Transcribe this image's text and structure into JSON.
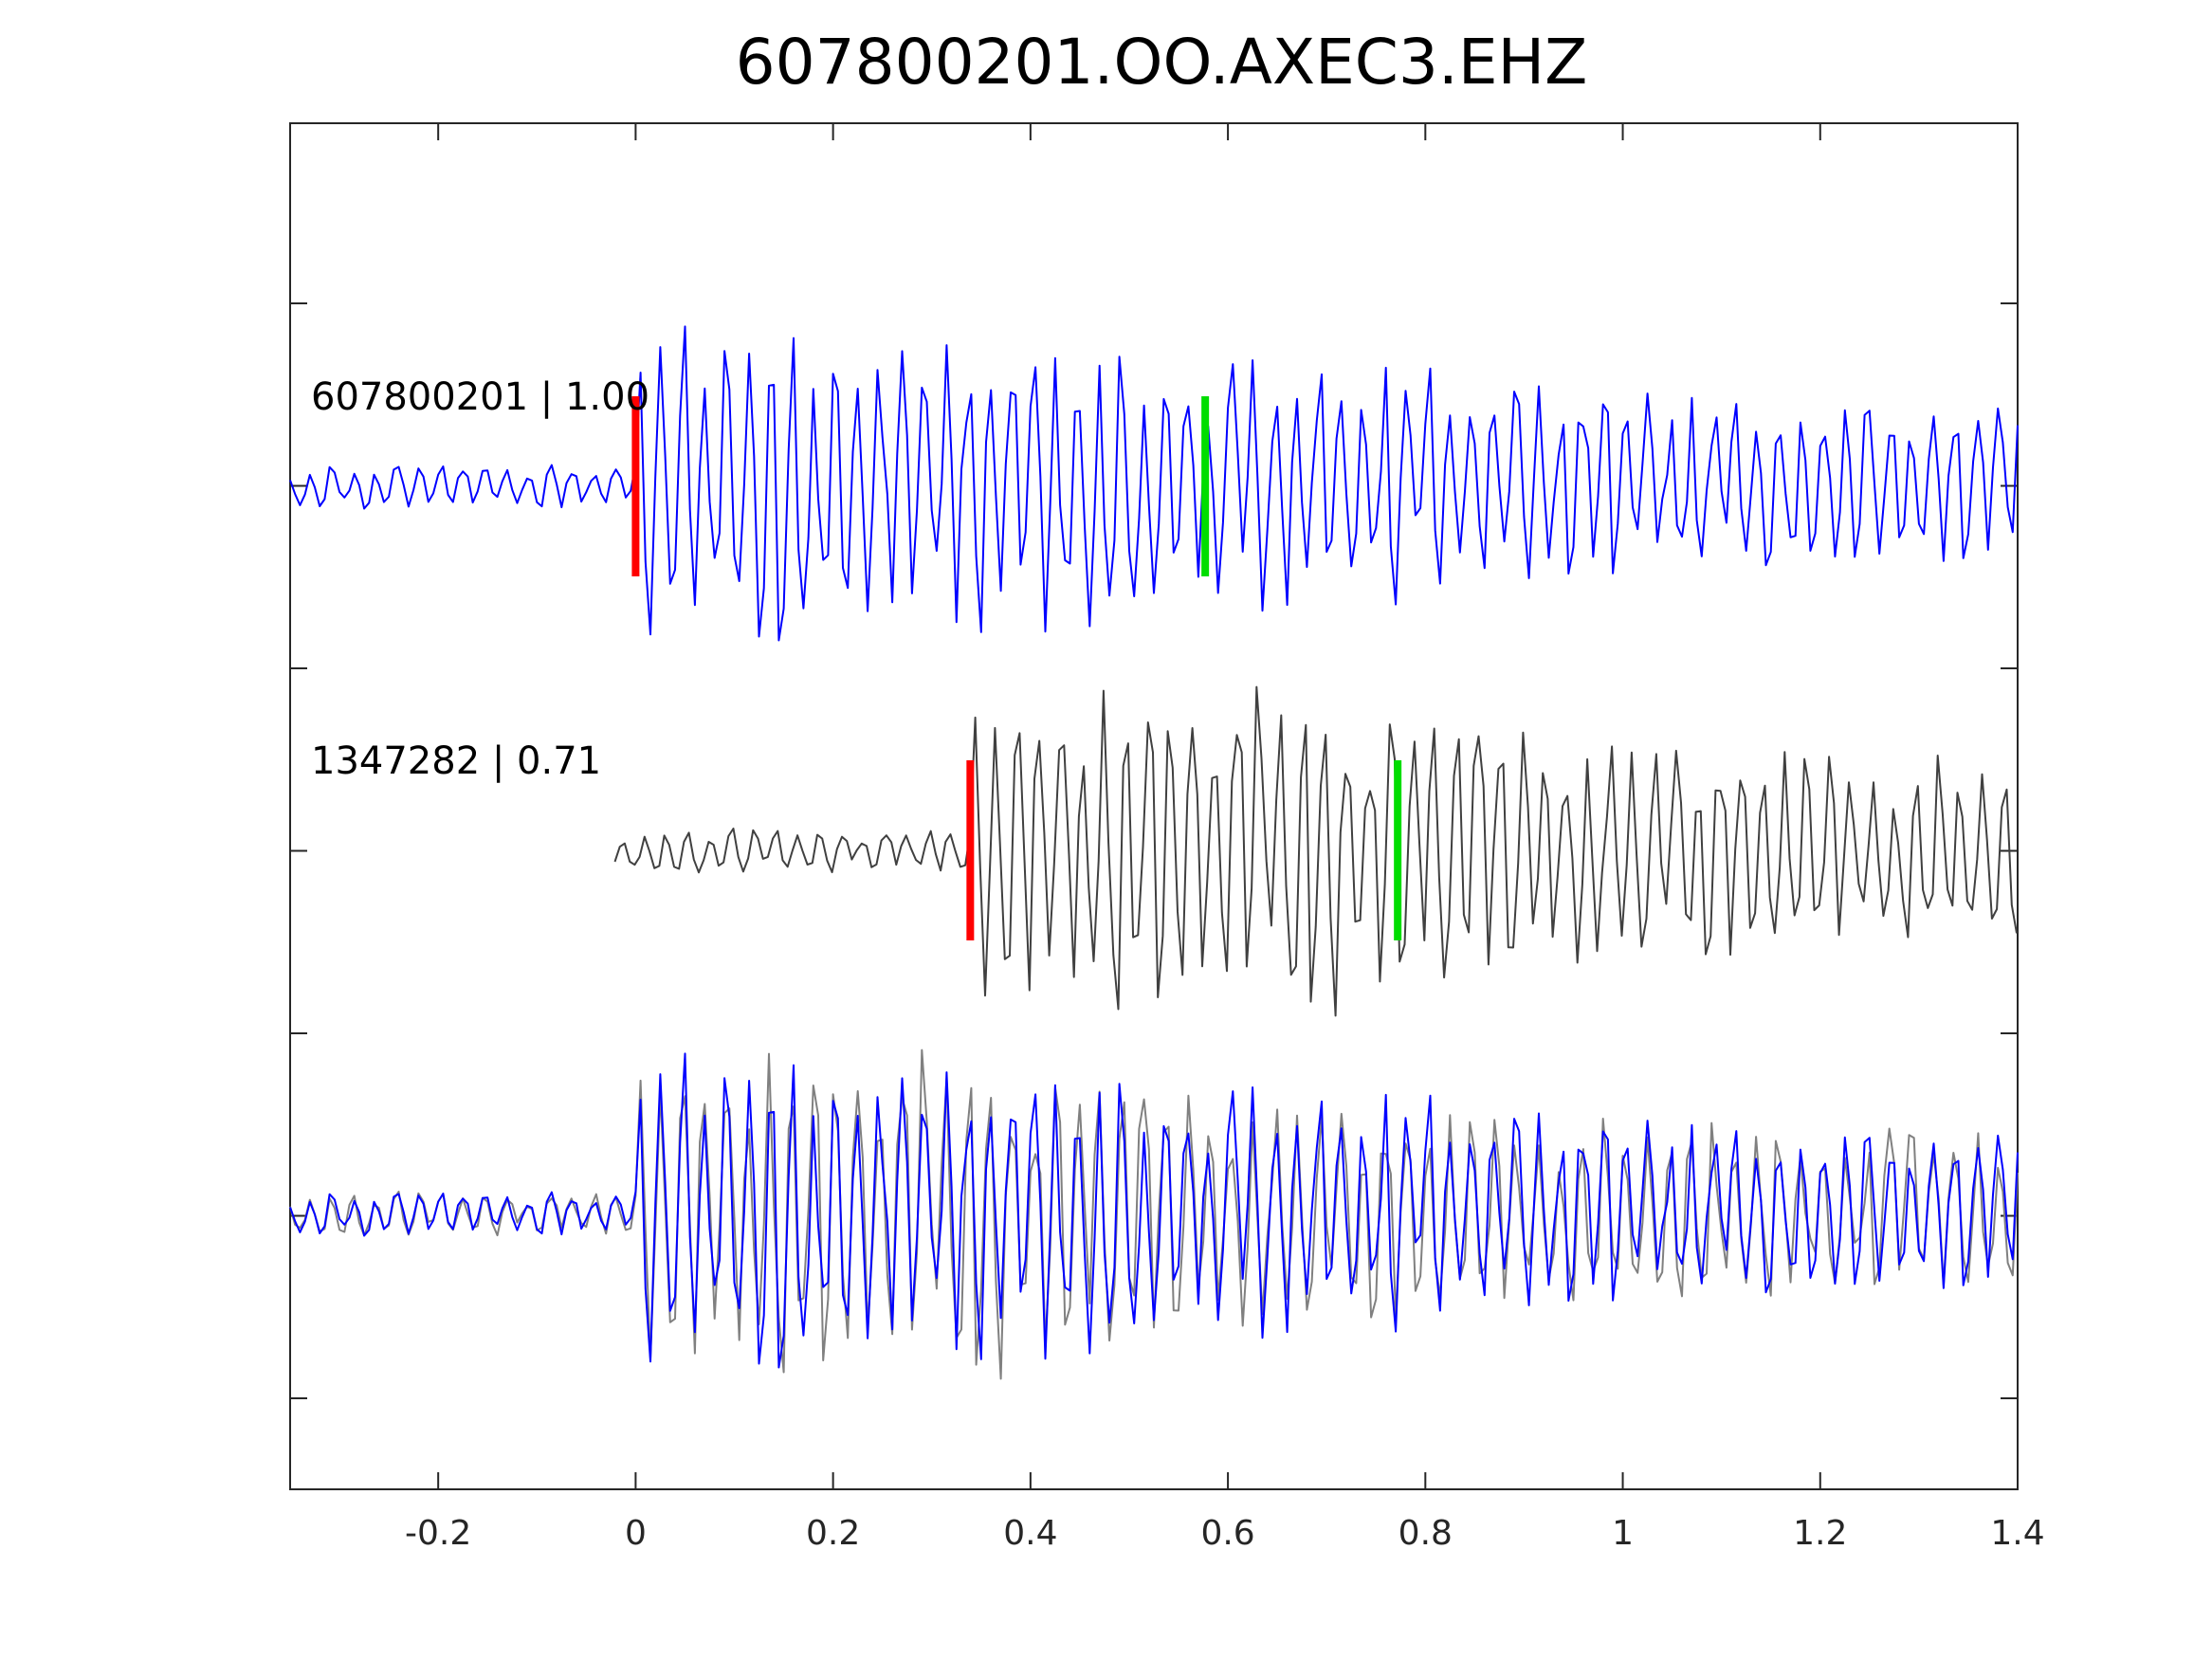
{
  "chart_data": {
    "type": "line",
    "title": "607800201.OO.AXEC3.EHZ",
    "xlabel": "",
    "ylabel": "",
    "xlim": [
      -0.35,
      1.4
    ],
    "x_ticks": [
      -0.2,
      0,
      0.2,
      0.4,
      0.6,
      0.8,
      1,
      1.2,
      1.4
    ],
    "x_tick_labels": [
      "-0.2",
      "0",
      "0.2",
      "0.4",
      "0.6",
      "0.8",
      "1",
      "1.2",
      "1.4"
    ],
    "y_ticks_count": 7,
    "grid": false,
    "colors": {
      "template": "#0000ff",
      "detection": "#404040",
      "overlay_detection": "#808080",
      "p_pick": "#ff0000",
      "s_pick": "#00dd00",
      "axes": "#262626"
    },
    "traces": [
      {
        "label": "607800201 | 1.00",
        "id": "607800201",
        "correlation": 1.0,
        "p_pick_time": 0.0,
        "s_pick_time": 0.577,
        "shift": 0.0
      },
      {
        "label": "1347282 | 0.71",
        "id": "1347282",
        "correlation": 0.71,
        "p_pick_time": 0.339,
        "s_pick_time": 0.772,
        "shift": 0.339
      }
    ],
    "overlay": "stacked comparison of both traces aligned on P pick"
  }
}
